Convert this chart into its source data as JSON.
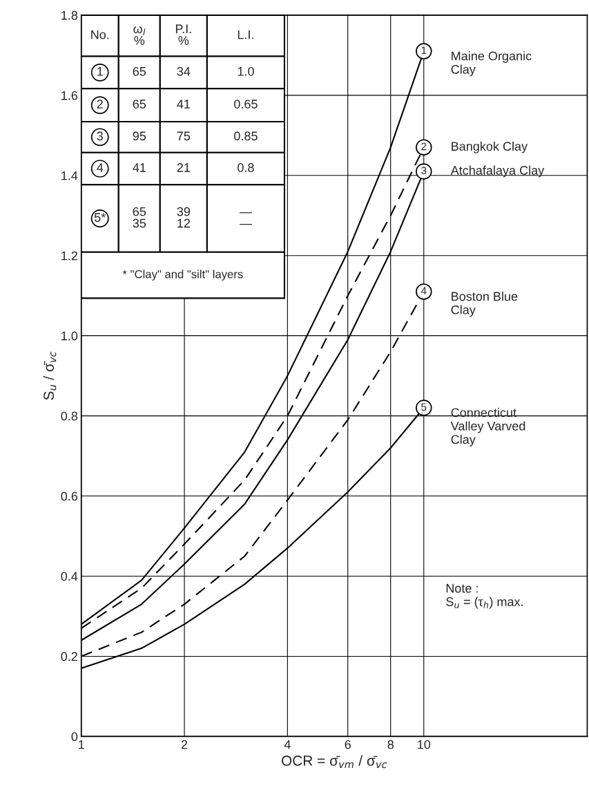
{
  "chart_data": {
    "type": "line",
    "xlabel": "OCR = σ̄$_{vm}$ / σ̄$_{vc}$",
    "ylabel": "S$_{u}$ / σ̄$_{vc}$",
    "x": [
      1,
      1.5,
      2,
      3,
      4,
      6,
      8,
      10
    ],
    "series": [
      {
        "name": "Maine Organic\nClay",
        "color": "#000000",
        "line_style": "solid",
        "values": [
          0.28,
          0.39,
          0.52,
          0.71,
          0.9,
          1.21,
          1.47,
          1.71
        ]
      },
      {
        "name": "Bangkok Clay",
        "color": "#000000",
        "line_style": "dashed",
        "values": [
          0.27,
          0.37,
          0.48,
          0.64,
          0.8,
          1.1,
          1.3,
          1.47
        ]
      },
      {
        "name": "Atchafalaya Clay",
        "color": "#000000",
        "line_style": "solid",
        "values": [
          0.24,
          0.33,
          0.43,
          0.58,
          0.74,
          0.99,
          1.21,
          1.41
        ]
      },
      {
        "name": "Boston Blue\nClay",
        "color": "#000000",
        "line_style": "dashed",
        "values": [
          0.2,
          0.26,
          0.33,
          0.45,
          0.59,
          0.79,
          0.96,
          1.11
        ]
      },
      {
        "name": "Connecticut\nValley Varved\nClay",
        "color": "#000000",
        "line_style": "solid",
        "values": [
          0.17,
          0.22,
          0.28,
          0.38,
          0.47,
          0.61,
          0.72,
          0.82
        ]
      }
    ],
    "log": "x",
    "xlim": [
      1,
      30
    ],
    "xticks": [
      1,
      2,
      4,
      6,
      8,
      10
    ],
    "ylim": [
      0,
      1.8
    ],
    "yticks": [
      0,
      0.2,
      0.4,
      0.6,
      0.8,
      {
        "value": 1.0,
        "label": "1.0"
      },
      1.2,
      1.4,
      1.6,
      1.8
    ],
    "grid": true,
    "annotations": [
      "No.",
      "ω$_{l}$\n%",
      "P.I.\n%",
      "L.I.",
      "1",
      "65",
      "34",
      "1.0",
      "2",
      "65",
      "41",
      "0.65",
      "3",
      "95",
      "75",
      "0.85",
      "4",
      "41",
      "21",
      "0.8",
      "5*",
      "65\n35",
      "39\n12",
      "—\n—",
      "* \"Clay\" and \"silt\" layers",
      "Note :\nS$_{u}$ = (τ$_{h}$) max.",
      "1",
      "2",
      "3",
      "4",
      "5"
    ]
  }
}
